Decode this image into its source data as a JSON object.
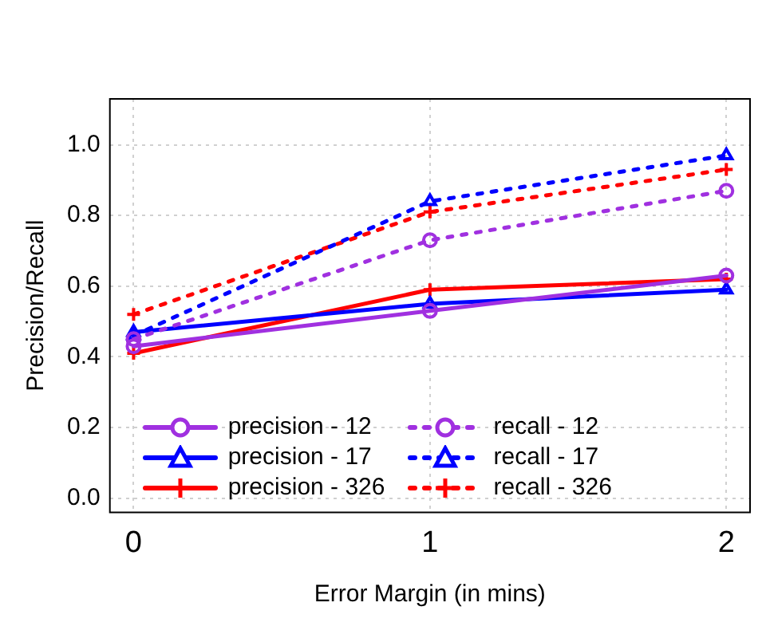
{
  "chart_data": {
    "type": "line",
    "xlabel": "Error Margin (in mins)",
    "ylabel": "Precision/Recall",
    "x": [
      0,
      1,
      2
    ],
    "xlim": [
      -0.08,
      2.08
    ],
    "xticks": [
      0,
      1,
      2
    ],
    "ylim": [
      -0.04,
      1.13
    ],
    "yticks": [
      {
        "value": 0,
        "label": "0.0"
      },
      {
        "value": 0.2,
        "label": "0.2"
      },
      {
        "value": 0.4,
        "label": "0.4"
      },
      {
        "value": 0.6,
        "label": "0.6"
      },
      {
        "value": 0.8,
        "label": "0.8"
      },
      {
        "value": 1,
        "label": "1.0"
      }
    ],
    "grid": true,
    "legend": "bottom",
    "series": [
      {
        "name": "precision - 12",
        "color": "#a030e0",
        "line_style": "solid",
        "marker": "circle",
        "values": [
          0.43,
          0.53,
          0.63
        ]
      },
      {
        "name": "recall - 12",
        "color": "#a030e0",
        "line_style": "dotted",
        "marker": "circle",
        "values": [
          0.45,
          0.73,
          0.87
        ]
      },
      {
        "name": "precision - 17",
        "color": "#0000ff",
        "line_style": "solid",
        "marker": "triangle",
        "values": [
          0.47,
          0.55,
          0.59
        ]
      },
      {
        "name": "recall - 17",
        "color": "#0000ff",
        "line_style": "dotted",
        "marker": "triangle",
        "values": [
          0.46,
          0.84,
          0.97
        ]
      },
      {
        "name": "precision - 326",
        "color": "#ff0000",
        "line_style": "solid",
        "marker": "cross",
        "values": [
          0.41,
          0.59,
          0.62
        ]
      },
      {
        "name": "recall - 326",
        "color": "#ff0000",
        "line_style": "dotted",
        "marker": "cross",
        "values": [
          0.52,
          0.81,
          0.93
        ]
      }
    ]
  }
}
